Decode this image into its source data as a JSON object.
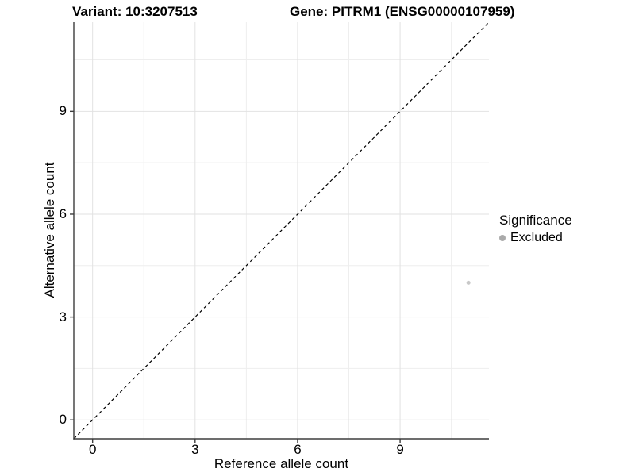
{
  "header": {
    "variant_title": "Variant: 10:3207513",
    "gene_title": "Gene: PITRM1 (ENSG00000107959)"
  },
  "legend": {
    "title": "Significance",
    "items": [
      {
        "label": "Excluded",
        "color": "#aaaaaa"
      }
    ]
  },
  "colors": {
    "background": "#ffffff",
    "axis_line": "#3d3d3d",
    "grid_major": "#e2e2e2",
    "grid_minor": "#eeeeee",
    "reference_line": "#000000",
    "point": "#c8c8c8",
    "text": "#000000"
  },
  "chart_data": {
    "type": "scatter",
    "title": "Variant: 10:3207513    Gene: PITRM1 (ENSG00000107959)",
    "xlabel": "Reference allele count",
    "ylabel": "Alternative allele count",
    "xlim": [
      -0.55,
      11.6
    ],
    "ylim": [
      -0.55,
      11.6
    ],
    "x_ticks": [
      0,
      3,
      6,
      9
    ],
    "y_ticks": [
      0,
      3,
      6,
      9
    ],
    "x_minor_ticks": [
      1.5,
      4.5,
      7.5,
      10.5
    ],
    "y_minor_ticks": [
      1.5,
      4.5,
      7.5,
      10.5
    ],
    "grid": "major+minor",
    "legend_position": "right",
    "series": [
      {
        "name": "Excluded",
        "color": "#c8c8c8",
        "marker": "circle",
        "points": [
          {
            "x": 11,
            "y": 4
          }
        ]
      }
    ],
    "reference_line": {
      "kind": "identity y=x",
      "linetype": "dashed",
      "color": "#000000"
    }
  }
}
